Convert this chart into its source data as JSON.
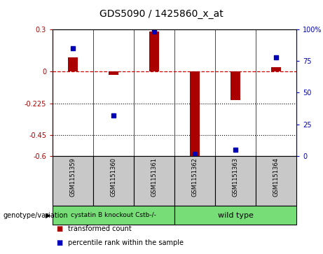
{
  "title": "GDS5090 / 1425860_x_at",
  "samples": [
    "GSM1151359",
    "GSM1151360",
    "GSM1151361",
    "GSM1151362",
    "GSM1151363",
    "GSM1151364"
  ],
  "red_values": [
    0.1,
    -0.025,
    0.285,
    -0.6,
    -0.2,
    0.03
  ],
  "blue_values": [
    85,
    32,
    98,
    2,
    5,
    78
  ],
  "ylim_left": [
    -0.6,
    0.3
  ],
  "ylim_right": [
    0,
    100
  ],
  "yticks_left": [
    0.3,
    0,
    -0.225,
    -0.45,
    -0.6
  ],
  "yticks_right": [
    100,
    75,
    50,
    25,
    0
  ],
  "ytick_labels_left": [
    "0.3",
    "0",
    "-0.225",
    "-0.45",
    "-0.6"
  ],
  "ytick_labels_right": [
    "100%",
    "75",
    "50",
    "25",
    "0"
  ],
  "groups": [
    {
      "name": "cystatin B knockout Cstb-/-",
      "indices": [
        0,
        1,
        2
      ],
      "color": "#77DD77"
    },
    {
      "name": "wild type",
      "indices": [
        3,
        4,
        5
      ],
      "color": "#77DD77"
    }
  ],
  "group_label": "genotype/variation",
  "red_color": "#AA0000",
  "blue_color": "#0000BB",
  "dashed_line_color": "#CC0000",
  "dotted_line_color": "#000000",
  "bg_plot": "#FFFFFF",
  "bg_sample_box": "#C8C8C8",
  "bar_width": 0.25,
  "blue_marker_size": 5,
  "legend_red_label": "transformed count",
  "legend_blue_label": "percentile rank within the sample"
}
